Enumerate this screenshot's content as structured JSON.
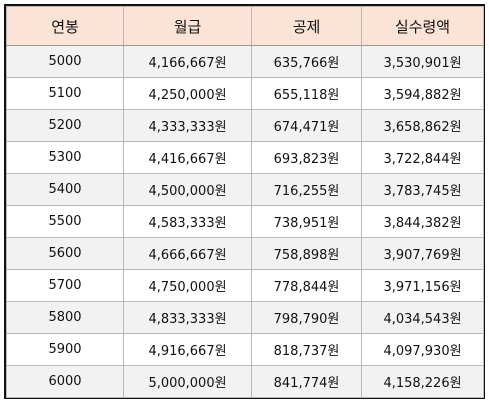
{
  "table": {
    "headers": [
      "연봉",
      "월급",
      "공제",
      "실수령액"
    ],
    "rows": [
      [
        "5000",
        "4,166,667원",
        "635,766원",
        "3,530,901원"
      ],
      [
        "5100",
        "4,250,000원",
        "655,118원",
        "3,594,882원"
      ],
      [
        "5200",
        "4,333,333원",
        "674,471원",
        "3,658,862원"
      ],
      [
        "5300",
        "4,416,667원",
        "693,823원",
        "3,722,844원"
      ],
      [
        "5400",
        "4,500,000원",
        "716,255원",
        "3,783,745원"
      ],
      [
        "5500",
        "4,583,333원",
        "738,951원",
        "3,844,382원"
      ],
      [
        "5600",
        "4,666,667원",
        "758,898원",
        "3,907,769원"
      ],
      [
        "5700",
        "4,750,000원",
        "778,844원",
        "3,971,156원"
      ],
      [
        "5800",
        "4,833,333원",
        "798,790원",
        "4,034,543원"
      ],
      [
        "5900",
        "4,916,667원",
        "818,737원",
        "4,097,930원"
      ],
      [
        "6000",
        "5,000,000원",
        "841,774원",
        "4,158,226원"
      ]
    ]
  },
  "colors": {
    "header_background": "#fbe3d6",
    "stripe_background": "#f2f2f2",
    "border": "#b8b8b8"
  }
}
